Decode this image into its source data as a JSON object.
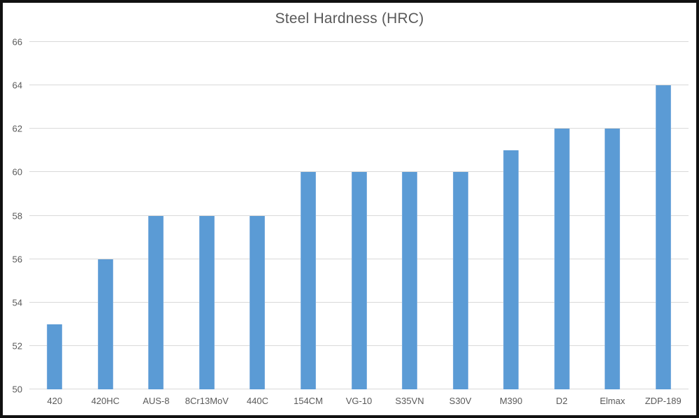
{
  "chart_data": {
    "type": "bar",
    "title": "Steel Hardness (HRC)",
    "categories": [
      "420",
      "420HC",
      "AUS-8",
      "8Cr13MoV",
      "440C",
      "154CM",
      "VG-10",
      "S35VN",
      "S30V",
      "M390",
      "D2",
      "Elmax",
      "ZDP-189"
    ],
    "values": [
      53,
      56,
      58,
      58,
      58,
      60,
      60,
      60,
      60,
      61,
      62,
      62,
      64
    ],
    "xlabel": "",
    "ylabel": "",
    "ylim": [
      50,
      66
    ],
    "yticks": [
      50,
      52,
      54,
      56,
      58,
      60,
      62,
      64,
      66
    ],
    "grid": true,
    "legend": "none",
    "colors": {
      "bar": "#5b9bd5",
      "bar_edge": "#7badde",
      "gridline": "#d9d9d9",
      "text": "#595959",
      "background": "#ffffff",
      "frame_border": "#111111"
    }
  }
}
